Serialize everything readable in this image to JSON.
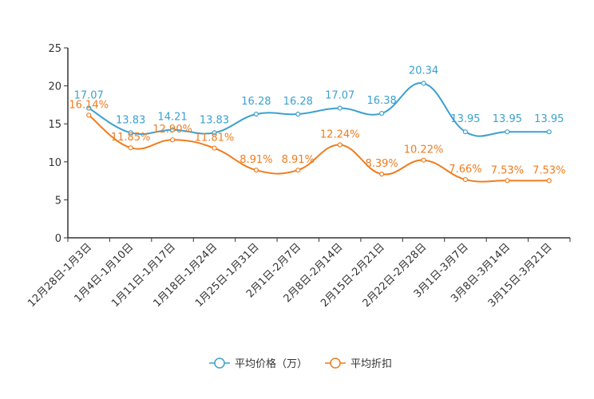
{
  "chart_data": {
    "type": "line",
    "title": "",
    "xlabel": "",
    "ylabel": "",
    "ylim": [
      0,
      25
    ],
    "yticks": [
      0,
      5,
      10,
      15,
      20,
      25
    ],
    "grid": false,
    "legend_position": "bottom",
    "categories": [
      "12月28日-1月3日",
      "1月4日-1月10日",
      "1月11日-1月17日",
      "1月18日-1月24日",
      "1月25日-1月31日",
      "2月1日-2月7日",
      "2月8日-2月14日",
      "2月15日-2月21日",
      "2月22日-2月28日",
      "3月1日-3月7日",
      "3月8日-3月14日",
      "3月15日-3月21日"
    ],
    "series": [
      {
        "name": "平均价格（万）",
        "color": "#3ba1cf",
        "values": [
          17.07,
          13.83,
          14.21,
          13.83,
          16.28,
          16.28,
          17.07,
          16.38,
          20.34,
          13.95,
          13.95,
          13.95
        ],
        "labels": [
          "17.07",
          "13.83",
          "14.21",
          "13.83",
          "16.28",
          "16.28",
          "17.07",
          "16.38",
          "20.34",
          "13.95",
          "13.95",
          "13.95"
        ]
      },
      {
        "name": "平均折扣",
        "color": "#f07c1e",
        "values": [
          16.14,
          11.85,
          12.9,
          11.81,
          8.91,
          8.91,
          12.24,
          8.39,
          10.22,
          7.66,
          7.53,
          7.53
        ],
        "labels": [
          "16.14%",
          "11.85%",
          "12.90%",
          "11.81%",
          "8.91%",
          "8.91%",
          "12.24%",
          "8.39%",
          "10.22%",
          "7.66%",
          "7.53%",
          "7.53%"
        ]
      }
    ]
  }
}
